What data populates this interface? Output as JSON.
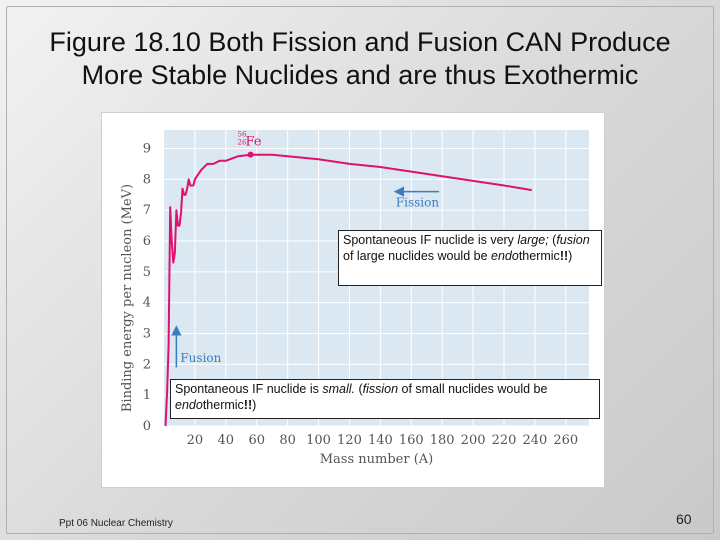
{
  "slide": {
    "title_line1": "Figure 18.10 Both Fission and Fusion CAN Produce",
    "title_line2": "More Stable Nuclides and are thus Exothermic",
    "footer": "Ppt 06 Nuclear Chemistry",
    "page_number": "60"
  },
  "callouts": {
    "fission": {
      "p1": "Spontaneous IF nuclide is very ",
      "p2": "large;",
      "p3": " (",
      "p4": "fusion",
      "p5": " of large nuclides would be ",
      "p6": "endo",
      "p7": "thermic",
      "p8": "!!",
      "p9": ")"
    },
    "fusion": {
      "p1": "Spontaneous IF nuclide is ",
      "p2": "small.",
      "p3": "   (",
      "p4": "fission",
      "p5": " of small nuclides would be ",
      "p6": "endo",
      "p7": "thermic",
      "p8": "!!",
      "p9": ")"
    }
  },
  "chart_data": {
    "type": "line",
    "xlabel": "Mass number (A)",
    "ylabel": "Binding energy per nucleon (MeV)",
    "xlim": [
      0,
      275
    ],
    "ylim": [
      0,
      9.6
    ],
    "x_ticks": [
      20,
      40,
      60,
      80,
      100,
      120,
      140,
      160,
      180,
      200,
      220,
      240,
      260
    ],
    "y_ticks": [
      0,
      1,
      2,
      3,
      4,
      5,
      6,
      7,
      8,
      9
    ],
    "grid": true,
    "series": [
      {
        "color": "#e0106e",
        "points": [
          [
            1,
            0
          ],
          [
            2,
            1.1
          ],
          [
            3,
            2.6
          ],
          [
            4,
            7.1
          ],
          [
            5,
            6.0
          ],
          [
            6,
            5.3
          ],
          [
            7,
            5.6
          ],
          [
            8,
            7.0
          ],
          [
            9,
            6.5
          ],
          [
            10,
            6.5
          ],
          [
            11,
            6.9
          ],
          [
            12,
            7.7
          ],
          [
            13,
            7.5
          ],
          [
            14,
            7.5
          ],
          [
            15,
            7.7
          ],
          [
            16,
            8.0
          ],
          [
            17,
            7.8
          ],
          [
            18,
            7.8
          ],
          [
            19,
            7.8
          ],
          [
            20,
            8.0
          ],
          [
            24,
            8.3
          ],
          [
            28,
            8.5
          ],
          [
            32,
            8.5
          ],
          [
            36,
            8.6
          ],
          [
            40,
            8.6
          ],
          [
            48,
            8.75
          ],
          [
            56,
            8.8
          ],
          [
            60,
            8.8
          ],
          [
            70,
            8.8
          ],
          [
            80,
            8.75
          ],
          [
            100,
            8.65
          ],
          [
            120,
            8.5
          ],
          [
            140,
            8.4
          ],
          [
            160,
            8.25
          ],
          [
            180,
            8.1
          ],
          [
            200,
            7.95
          ],
          [
            220,
            7.8
          ],
          [
            238,
            7.65
          ]
        ]
      }
    ],
    "annotations": [
      {
        "text_top": "56",
        "text_bottom": "26",
        "text": "Fe",
        "x": 56,
        "y": 8.8,
        "marker_color": "#e0106e"
      },
      {
        "text": "Fission",
        "arrow": "left"
      },
      {
        "text": "Fusion",
        "arrow": "up"
      }
    ],
    "colors": {
      "plot_background": "#dbe8f2",
      "grid": "#ffffff",
      "label_blue": "#3a7cc0",
      "axis_text": "#555555"
    }
  }
}
